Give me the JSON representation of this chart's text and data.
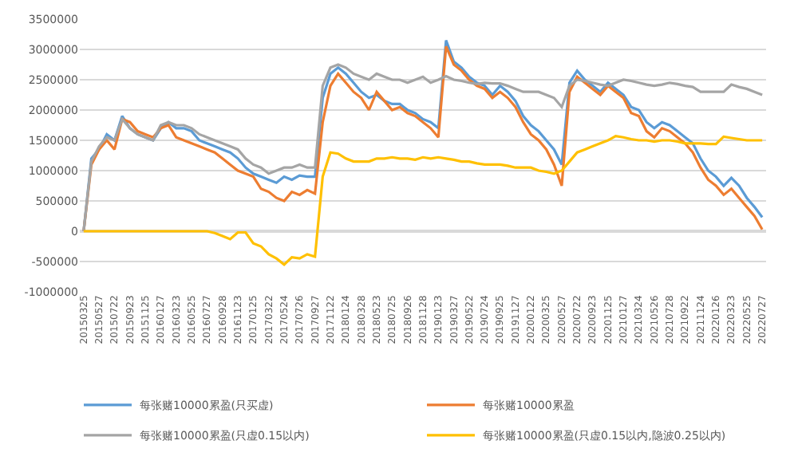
{
  "chart_data": {
    "type": "line",
    "categories": [
      "20150325",
      null,
      "20150527",
      null,
      "20150722",
      null,
      "20150923",
      null,
      "20151125",
      null,
      "20160127",
      null,
      "20160323",
      null,
      "20160525",
      null,
      "20160727",
      null,
      "20160928",
      null,
      "20161123",
      null,
      "20170125",
      null,
      "20170322",
      null,
      "20170524",
      null,
      "20170726",
      null,
      "20170927",
      null,
      "20171122",
      null,
      "20180124",
      null,
      "20180328",
      null,
      "20180523",
      null,
      "20180725",
      null,
      "20180926",
      null,
      "20181128",
      null,
      "20190123",
      null,
      "20190327",
      null,
      "20190522",
      null,
      "20190724",
      null,
      "20190925",
      null,
      "20191127",
      null,
      "20200122",
      null,
      "20200325",
      null,
      "20200527",
      null,
      "20200722",
      null,
      "20200923",
      null,
      "20201125",
      null,
      "20210127",
      null,
      "20210324",
      null,
      "20210526",
      null,
      "20210728",
      null,
      "20210922",
      null,
      "20211124",
      null,
      "20220126",
      null,
      "20220323",
      null,
      "20220525",
      null,
      "20220727"
    ],
    "series": [
      {
        "name": "每张赌10000累盈(只买虚)",
        "color": "#5b9bd5",
        "values": [
          0,
          1200000,
          1350000,
          1600000,
          1500000,
          1900000,
          1700000,
          1600000,
          1550000,
          1500000,
          1700000,
          1800000,
          1700000,
          1700000,
          1650000,
          1500000,
          1450000,
          1400000,
          1350000,
          1300000,
          1200000,
          1050000,
          950000,
          900000,
          850000,
          800000,
          900000,
          850000,
          920000,
          900000,
          900000,
          2200000,
          2600000,
          2700000,
          2600000,
          2450000,
          2300000,
          2200000,
          2250000,
          2150000,
          2100000,
          2100000,
          2000000,
          1950000,
          1850000,
          1800000,
          1700000,
          3150000,
          2800000,
          2700000,
          2550000,
          2450000,
          2400000,
          2250000,
          2400000,
          2300000,
          2150000,
          1900000,
          1750000,
          1650000,
          1500000,
          1350000,
          1100000,
          2450000,
          2650000,
          2500000,
          2400000,
          2300000,
          2450000,
          2350000,
          2250000,
          2050000,
          2000000,
          1800000,
          1700000,
          1800000,
          1750000,
          1650000,
          1550000,
          1450000,
          1200000,
          1000000,
          900000,
          750000,
          880000,
          750000,
          550000,
          400000,
          230000
        ]
      },
      {
        "name": "每张赌10000累盈",
        "color": "#ed7d31",
        "values": [
          0,
          1100000,
          1350000,
          1500000,
          1350000,
          1850000,
          1800000,
          1650000,
          1600000,
          1550000,
          1700000,
          1750000,
          1550000,
          1500000,
          1450000,
          1400000,
          1350000,
          1300000,
          1200000,
          1100000,
          1000000,
          950000,
          900000,
          700000,
          650000,
          550000,
          500000,
          650000,
          600000,
          680000,
          620000,
          1800000,
          2400000,
          2600000,
          2450000,
          2300000,
          2200000,
          2000000,
          2300000,
          2150000,
          2000000,
          2050000,
          1950000,
          1900000,
          1800000,
          1700000,
          1550000,
          3050000,
          2750000,
          2650000,
          2500000,
          2400000,
          2350000,
          2200000,
          2300000,
          2200000,
          2050000,
          1800000,
          1600000,
          1500000,
          1350000,
          1100000,
          750000,
          2300000,
          2550000,
          2450000,
          2350000,
          2250000,
          2400000,
          2300000,
          2200000,
          1950000,
          1900000,
          1650000,
          1550000,
          1700000,
          1650000,
          1550000,
          1450000,
          1300000,
          1050000,
          850000,
          750000,
          600000,
          700000,
          550000,
          400000,
          250000,
          30000
        ]
      },
      {
        "name": "每张赌10000累盈(只虚0.15以内)",
        "color": "#a5a5a5",
        "values": [
          0,
          1150000,
          1400000,
          1550000,
          1500000,
          1850000,
          1700000,
          1600000,
          1550000,
          1500000,
          1750000,
          1800000,
          1750000,
          1750000,
          1700000,
          1600000,
          1550000,
          1500000,
          1450000,
          1400000,
          1350000,
          1200000,
          1100000,
          1050000,
          950000,
          1000000,
          1050000,
          1050000,
          1100000,
          1050000,
          1050000,
          2400000,
          2700000,
          2750000,
          2700000,
          2600000,
          2550000,
          2500000,
          2600000,
          2550000,
          2500000,
          2500000,
          2450000,
          2500000,
          2550000,
          2450000,
          2500000,
          2560000,
          2500000,
          2480000,
          2450000,
          2430000,
          2450000,
          2440000,
          2440000,
          2400000,
          2350000,
          2300000,
          2300000,
          2300000,
          2250000,
          2200000,
          2050000,
          2400000,
          2500000,
          2480000,
          2450000,
          2420000,
          2400000,
          2450000,
          2500000,
          2480000,
          2450000,
          2420000,
          2400000,
          2420000,
          2450000,
          2430000,
          2400000,
          2380000,
          2300000,
          2300000,
          2300000,
          2300000,
          2420000,
          2380000,
          2350000,
          2300000,
          2250000
        ]
      },
      {
        "name": "每张赌10000累盈(只虚0.15以内,隐波0.25以内)",
        "color": "#ffc000",
        "values": [
          0,
          0,
          0,
          0,
          0,
          0,
          0,
          0,
          0,
          0,
          0,
          0,
          0,
          0,
          0,
          0,
          0,
          -30000,
          -80000,
          -130000,
          -20000,
          -20000,
          -200000,
          -250000,
          -380000,
          -450000,
          -550000,
          -430000,
          -450000,
          -380000,
          -420000,
          900000,
          1300000,
          1280000,
          1200000,
          1150000,
          1150000,
          1150000,
          1200000,
          1200000,
          1220000,
          1200000,
          1200000,
          1180000,
          1220000,
          1200000,
          1220000,
          1200000,
          1180000,
          1150000,
          1150000,
          1120000,
          1100000,
          1100000,
          1100000,
          1080000,
          1050000,
          1050000,
          1050000,
          1000000,
          980000,
          950000,
          1000000,
          1150000,
          1300000,
          1350000,
          1400000,
          1450000,
          1500000,
          1570000,
          1550000,
          1520000,
          1500000,
          1500000,
          1480000,
          1500000,
          1500000,
          1480000,
          1450000,
          1450000,
          1450000,
          1440000,
          1440000,
          1560000,
          1540000,
          1520000,
          1500000,
          1500000,
          1500000
        ]
      }
    ],
    "ylim": [
      -1000000,
      3500000
    ],
    "yticks": [
      -1000000,
      -500000,
      0,
      500000,
      1000000,
      1500000,
      2000000,
      2500000,
      3000000,
      3500000
    ],
    "grid": "y",
    "legend": "bottom",
    "marker": "none",
    "line_style": "solid"
  }
}
